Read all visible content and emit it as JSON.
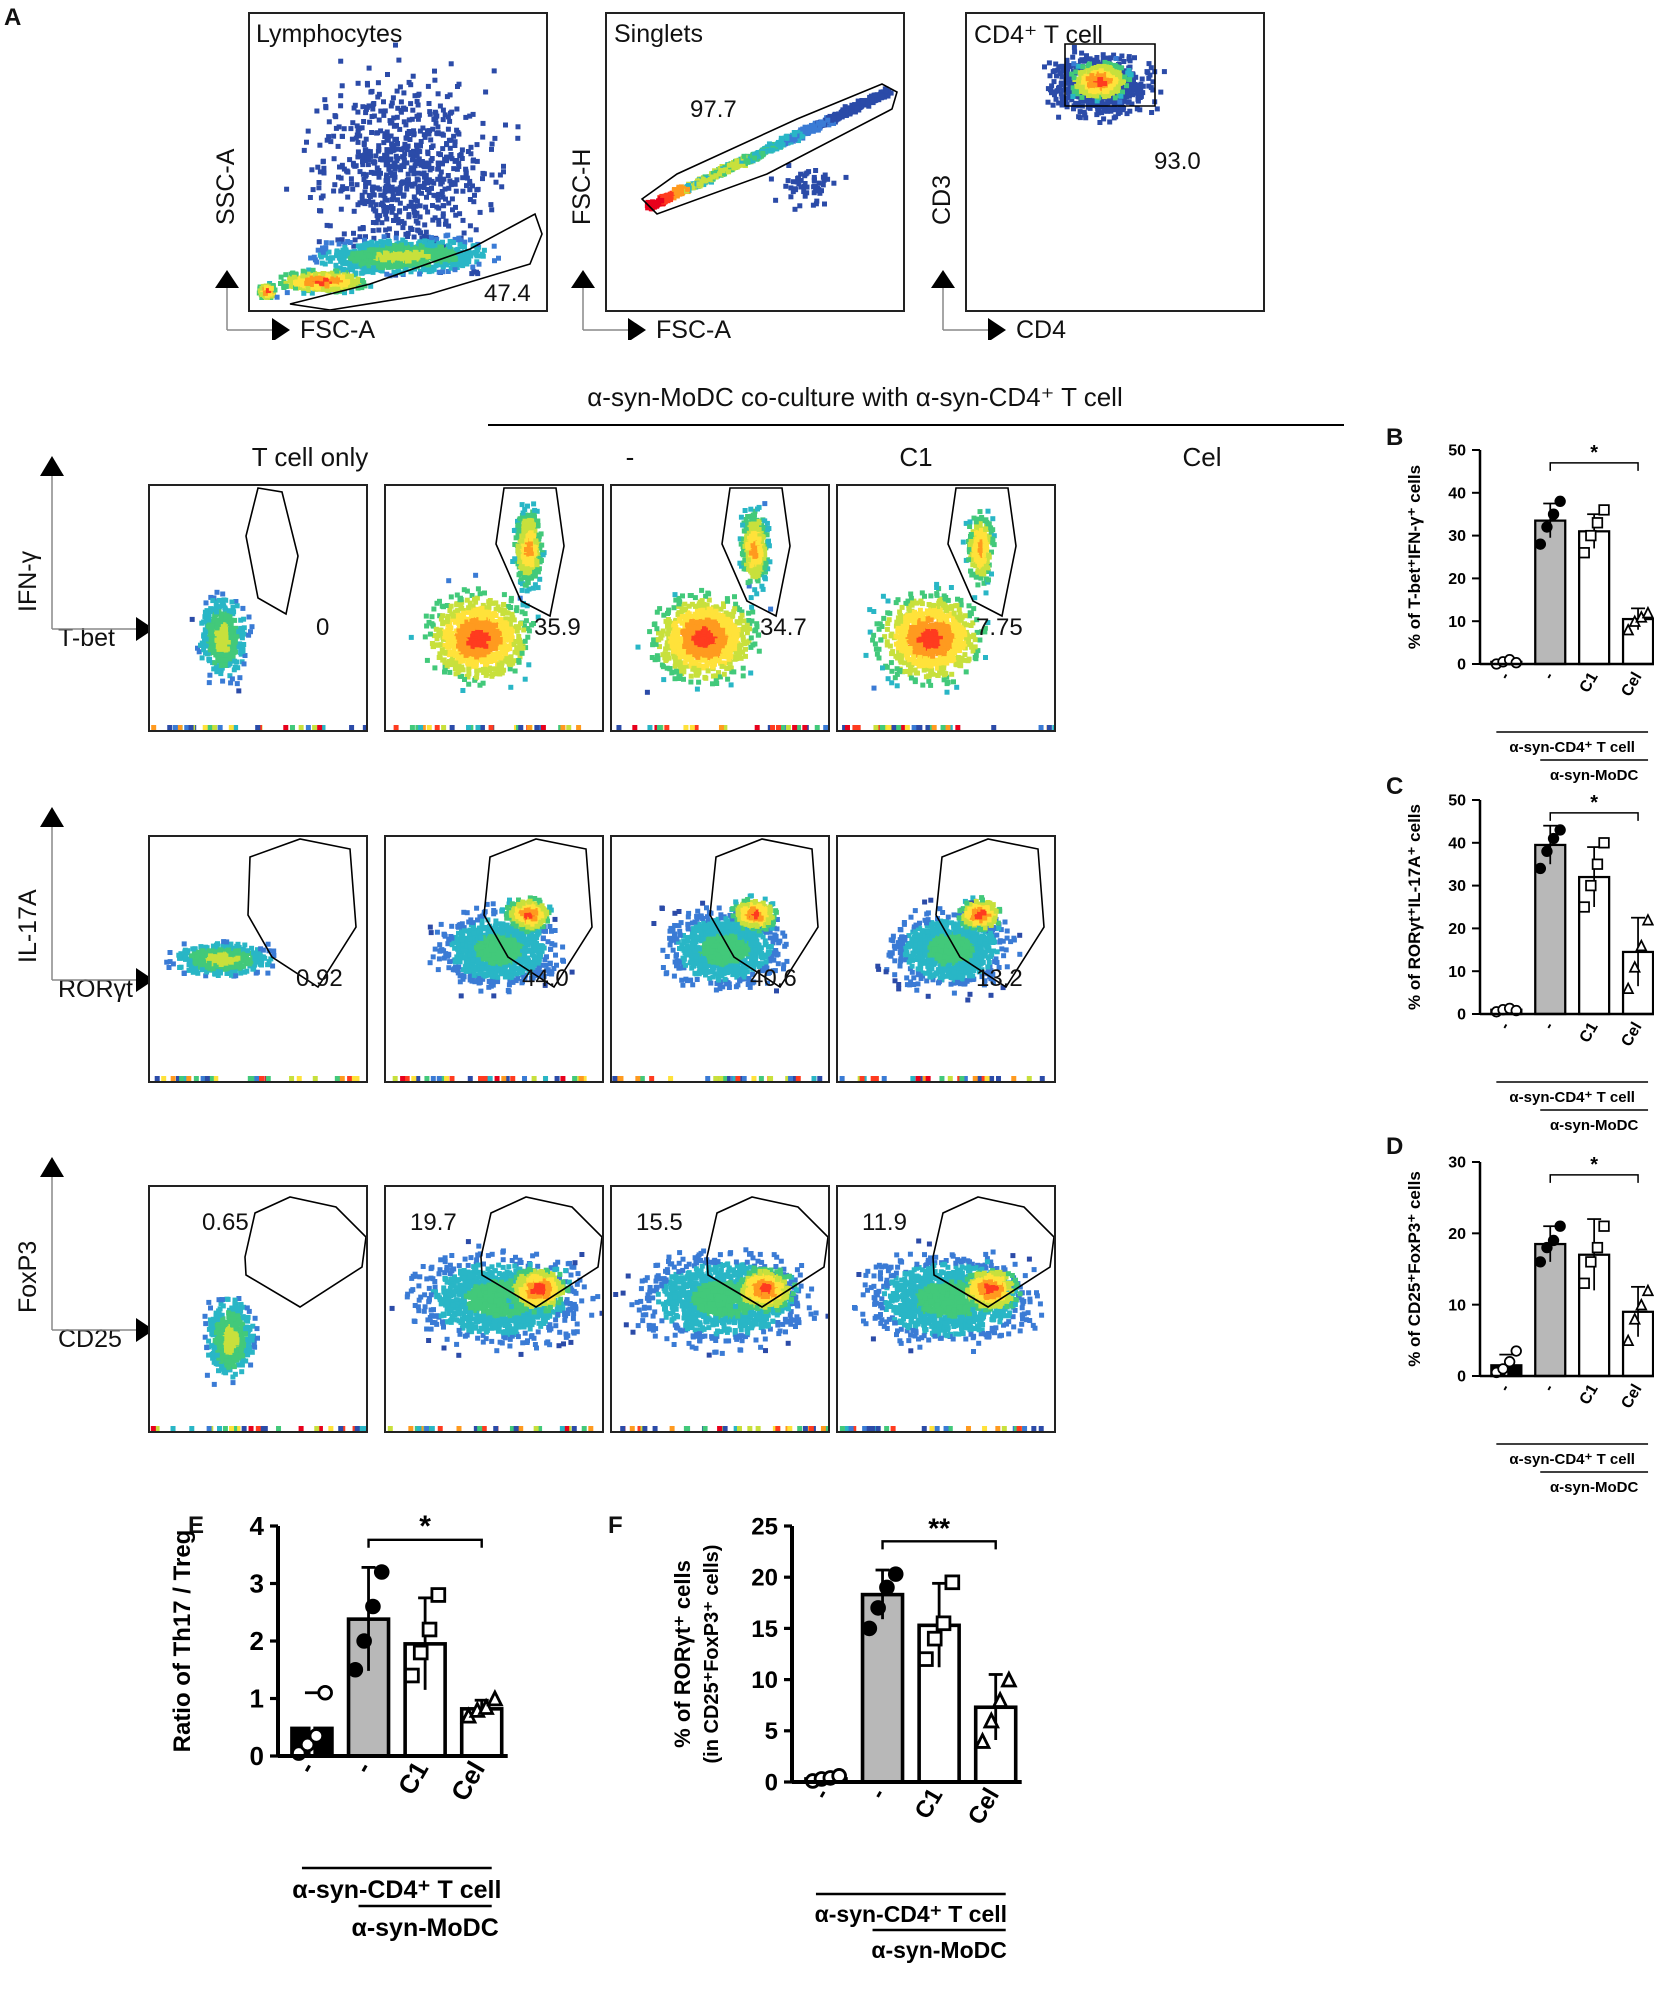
{
  "panel_labels": {
    "A": "A",
    "B": "B",
    "C": "C",
    "D": "D",
    "E": "E",
    "F": "F"
  },
  "gating": [
    {
      "title": "Lymphocytes",
      "value": "47.4",
      "x_label": "FSC-A",
      "y_label": "SSC-A"
    },
    {
      "title": "Singlets",
      "value": "97.7",
      "x_label": "FSC-A",
      "y_label": "FSC-H"
    },
    {
      "title": "CD4⁺ T cell",
      "value": "93.0",
      "x_label": "CD4",
      "y_label": "CD3"
    }
  ],
  "coculture_header": "α-syn-MoDC co-culture with α-syn-CD4⁺ T cell",
  "columns": [
    "T cell only",
    "-",
    "C1",
    "Cel"
  ],
  "flow_rows": [
    {
      "y_label": "IFN-γ",
      "x_label": "T-bet",
      "values": [
        "0",
        "35.9",
        "34.7",
        "7.75"
      ]
    },
    {
      "y_label": "IL-17A",
      "x_label": "RORγt",
      "values": [
        "0.92",
        "44.0",
        "40.6",
        "13.2"
      ]
    },
    {
      "y_label": "FoxP3",
      "x_label": "CD25",
      "values": [
        "0.65",
        "19.7",
        "15.5",
        "11.9"
      ]
    }
  ],
  "chart_data": [
    {
      "id": "B",
      "type": "bar",
      "ylabel": "% of T-bet⁺IFN-γ⁺ cells",
      "ylim": [
        0,
        50
      ],
      "yticks": [
        0,
        10,
        20,
        30,
        40,
        50
      ],
      "categories": [
        "-",
        "-",
        "C1",
        "Cel"
      ],
      "means": [
        0.5,
        33.5,
        31,
        10.5
      ],
      "sd": [
        0.8,
        4,
        4,
        2.5
      ],
      "points": [
        [
          0,
          0.5,
          1,
          0.3
        ],
        [
          28,
          32,
          35,
          38
        ],
        [
          26,
          30,
          33,
          36
        ],
        [
          8,
          10,
          11,
          12
        ]
      ],
      "significance": "*",
      "group1": "α-syn-CD4⁺ T cell",
      "group2": "α-syn-MoDC"
    },
    {
      "id": "C",
      "type": "bar",
      "ylabel": "% of RORγt⁺IL-17A⁺ cells",
      "ylim": [
        0,
        50
      ],
      "yticks": [
        0,
        10,
        20,
        30,
        40,
        50
      ],
      "categories": [
        "-",
        "-",
        "C1",
        "Cel"
      ],
      "means": [
        1,
        39.5,
        32,
        14.5
      ],
      "sd": [
        0.6,
        4.5,
        7,
        8
      ],
      "points": [
        [
          0.5,
          1,
          1.3,
          0.8
        ],
        [
          34,
          38,
          41,
          43
        ],
        [
          25,
          30,
          35,
          40
        ],
        [
          6,
          11,
          16,
          22
        ]
      ],
      "significance": "*",
      "group1": "α-syn-CD4⁺ T cell",
      "group2": "α-syn-MoDC"
    },
    {
      "id": "D",
      "type": "bar",
      "ylabel": "% of CD25⁺FoxP3⁺ cells",
      "ylim": [
        0,
        30
      ],
      "yticks": [
        0,
        10,
        20,
        30
      ],
      "categories": [
        "-",
        "-",
        "C1",
        "Cel"
      ],
      "means": [
        1.5,
        18.5,
        17,
        9
      ],
      "sd": [
        1.5,
        2.5,
        5,
        3.5
      ],
      "points": [
        [
          0.5,
          1,
          2,
          3.5
        ],
        [
          16,
          18,
          19,
          21
        ],
        [
          13,
          16,
          18,
          21
        ],
        [
          5,
          8,
          10,
          12
        ]
      ],
      "significance": "*",
      "group1": "α-syn-CD4⁺ T cell",
      "group2": "α-syn-MoDC"
    },
    {
      "id": "E",
      "type": "bar",
      "ylabel": "Ratio of Th17 / Treg",
      "ylim": [
        0,
        4
      ],
      "yticks": [
        0,
        1,
        2,
        3,
        4
      ],
      "categories": [
        "-",
        "-",
        "C1",
        "Cel"
      ],
      "means": [
        0.48,
        2.38,
        1.95,
        0.82
      ],
      "sd": [
        0.62,
        0.9,
        0.8,
        0.15
      ],
      "points": [
        [
          0.05,
          0.2,
          0.35,
          1.1
        ],
        [
          1.5,
          2.0,
          2.6,
          3.2
        ],
        [
          1.4,
          1.8,
          2.2,
          2.8
        ],
        [
          0.7,
          0.8,
          0.85,
          1.0
        ]
      ],
      "significance": "*",
      "group1": "α-syn-CD4⁺ T cell",
      "group2": "α-syn-MoDC"
    },
    {
      "id": "F",
      "type": "bar",
      "ylabel": "% of RORγt⁺ cells",
      "ylabel2": "(in CD25⁺FoxP3⁺ cells)",
      "ylim": [
        0,
        25
      ],
      "yticks": [
        0,
        5,
        10,
        15,
        20,
        25
      ],
      "categories": [
        "-",
        "-",
        "C1",
        "Cel"
      ],
      "means": [
        0.3,
        18.3,
        15.3,
        7.3
      ],
      "sd": [
        0.5,
        2.4,
        4.1,
        3.2
      ],
      "points": [
        [
          0.1,
          0.3,
          0.4,
          0.6
        ],
        [
          15,
          17,
          19,
          20.3
        ],
        [
          12,
          14,
          15.5,
          19.5
        ],
        [
          4,
          6,
          8,
          10
        ]
      ],
      "significance": "**",
      "group1": "α-syn-CD4⁺ T cell",
      "group2": "α-syn-MoDC"
    }
  ]
}
